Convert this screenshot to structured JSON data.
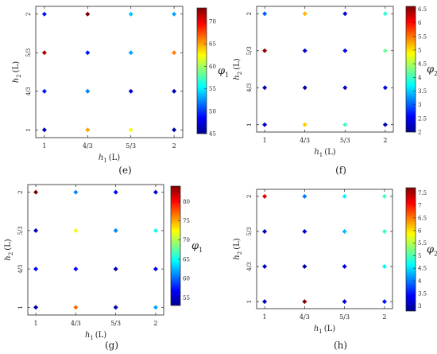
{
  "chart_data": [
    {
      "type": "scatter",
      "panel_label": "(e)",
      "xlabel_main": "h",
      "xlabel_sub": "1",
      "xlabel_unit": "(L)",
      "ylabel_main": "h",
      "ylabel_sub": "2",
      "ylabel_unit": "(L)",
      "x_ticks": [
        "1",
        "4/3",
        "5/3",
        "2"
      ],
      "y_ticks": [
        "1",
        "4/3",
        "5/3",
        "2"
      ],
      "colorbar_label_main": "φ",
      "colorbar_label_sub": "1",
      "colorbar_ticks": [
        "45",
        "50",
        "55",
        "60",
        "65",
        "70"
      ],
      "colorbar_range": [
        45,
        73
      ],
      "grid": false,
      "points": [
        {
          "x": "1",
          "y": "1",
          "value": 46
        },
        {
          "x": "4/3",
          "y": "1",
          "value": 65
        },
        {
          "x": "5/3",
          "y": "1",
          "value": 62
        },
        {
          "x": "2",
          "y": "1",
          "value": 46
        },
        {
          "x": "1",
          "y": "4/3",
          "value": 49
        },
        {
          "x": "4/3",
          "y": "4/3",
          "value": 52
        },
        {
          "x": "5/3",
          "y": "4/3",
          "value": 47
        },
        {
          "x": "2",
          "y": "4/3",
          "value": 46
        },
        {
          "x": "1",
          "y": "5/3",
          "value": 72
        },
        {
          "x": "4/3",
          "y": "5/3",
          "value": 49
        },
        {
          "x": "5/3",
          "y": "5/3",
          "value": 53
        },
        {
          "x": "2",
          "y": "5/3",
          "value": 66
        },
        {
          "x": "1",
          "y": "2",
          "value": 49
        },
        {
          "x": "4/3",
          "y": "2",
          "value": 73
        },
        {
          "x": "5/3",
          "y": "2",
          "value": 54
        },
        {
          "x": "2",
          "y": "2",
          "value": 53
        }
      ]
    },
    {
      "type": "scatter",
      "panel_label": "(f)",
      "xlabel_main": "h",
      "xlabel_sub": "1",
      "xlabel_unit": "(L)",
      "ylabel_main": "h",
      "ylabel_sub": "2",
      "ylabel_unit": "(L)",
      "x_ticks": [
        "1",
        "4/3",
        "5/3",
        "2"
      ],
      "y_ticks": [
        "1",
        "4/3",
        "5/3",
        "2"
      ],
      "colorbar_label_main": "φ",
      "colorbar_label_sub": "2",
      "colorbar_ticks": [
        "2",
        "2.5",
        "3",
        "3.5",
        "4",
        "4.5",
        "5",
        "5.5",
        "6",
        "6.5"
      ],
      "colorbar_range": [
        2,
        6.6
      ],
      "grid": false,
      "points": [
        {
          "x": "1",
          "y": "1",
          "value": 2.3
        },
        {
          "x": "4/3",
          "y": "1",
          "value": 5.1
        },
        {
          "x": "5/3",
          "y": "1",
          "value": 4.0
        },
        {
          "x": "2",
          "y": "1",
          "value": 2.2
        },
        {
          "x": "1",
          "y": "4/3",
          "value": 2.2
        },
        {
          "x": "4/3",
          "y": "4/3",
          "value": 2.1
        },
        {
          "x": "5/3",
          "y": "4/3",
          "value": 2.3
        },
        {
          "x": "2",
          "y": "4/3",
          "value": 2.4
        },
        {
          "x": "1",
          "y": "5/3",
          "value": 6.5
        },
        {
          "x": "4/3",
          "y": "5/3",
          "value": 2.3
        },
        {
          "x": "5/3",
          "y": "5/3",
          "value": 2.5
        },
        {
          "x": "2",
          "y": "5/3",
          "value": 4.2
        },
        {
          "x": "1",
          "y": "2",
          "value": 3.0
        },
        {
          "x": "4/3",
          "y": "2",
          "value": 5.2
        },
        {
          "x": "5/3",
          "y": "2",
          "value": 2.4
        },
        {
          "x": "2",
          "y": "2",
          "value": 3.9
        }
      ]
    },
    {
      "type": "scatter",
      "panel_label": "(g)",
      "xlabel_main": "h",
      "xlabel_sub": "1",
      "xlabel_unit": "(L)",
      "ylabel_main": "h",
      "ylabel_sub": "2",
      "ylabel_unit": "(L)",
      "x_ticks": [
        "1",
        "4/3",
        "5/3",
        "2"
      ],
      "y_ticks": [
        "1",
        "4/3",
        "5/3",
        "2"
      ],
      "colorbar_label_main": "φ",
      "colorbar_label_sub": "1",
      "colorbar_ticks": [
        "55",
        "60",
        "65",
        "70",
        "75",
        "80"
      ],
      "colorbar_range": [
        53,
        84
      ],
      "grid": false,
      "points": [
        {
          "x": "1",
          "y": "1",
          "value": 54
        },
        {
          "x": "4/3",
          "y": "1",
          "value": 77
        },
        {
          "x": "5/3",
          "y": "1",
          "value": 54
        },
        {
          "x": "2",
          "y": "1",
          "value": 62
        },
        {
          "x": "1",
          "y": "4/3",
          "value": 57
        },
        {
          "x": "4/3",
          "y": "4/3",
          "value": 57
        },
        {
          "x": "5/3",
          "y": "4/3",
          "value": 54
        },
        {
          "x": "2",
          "y": "4/3",
          "value": 56
        },
        {
          "x": "1",
          "y": "5/3",
          "value": 55
        },
        {
          "x": "4/3",
          "y": "5/3",
          "value": 72
        },
        {
          "x": "5/3",
          "y": "5/3",
          "value": 61
        },
        {
          "x": "2",
          "y": "5/3",
          "value": 65
        },
        {
          "x": "1",
          "y": "2",
          "value": 84
        },
        {
          "x": "4/3",
          "y": "2",
          "value": 61
        },
        {
          "x": "5/3",
          "y": "2",
          "value": 57
        },
        {
          "x": "2",
          "y": "2",
          "value": 55
        }
      ]
    },
    {
      "type": "scatter",
      "panel_label": "(h)",
      "xlabel_main": "h",
      "xlabel_sub": "1",
      "xlabel_unit": "(L)",
      "ylabel_main": "h",
      "ylabel_sub": "2",
      "ylabel_unit": "(L)",
      "x_ticks": [
        "1",
        "4/3",
        "5/3",
        "2"
      ],
      "y_ticks": [
        "1",
        "4/3",
        "5/3",
        "2"
      ],
      "colorbar_label_main": "φ",
      "colorbar_label_sub": "2",
      "colorbar_ticks": [
        "3",
        "3.5",
        "4",
        "4.5",
        "5",
        "5.5",
        "6",
        "6.5",
        "7",
        "7.5"
      ],
      "colorbar_range": [
        2.8,
        7.7
      ],
      "grid": false,
      "points": [
        {
          "x": "1",
          "y": "1",
          "value": 3.0
        },
        {
          "x": "4/3",
          "y": "1",
          "value": 7.7
        },
        {
          "x": "5/3",
          "y": "1",
          "value": 3.1
        },
        {
          "x": "2",
          "y": "1",
          "value": 3.5
        },
        {
          "x": "1",
          "y": "4/3",
          "value": 3.1
        },
        {
          "x": "4/3",
          "y": "4/3",
          "value": 2.9
        },
        {
          "x": "5/3",
          "y": "4/3",
          "value": 3.3
        },
        {
          "x": "2",
          "y": "4/3",
          "value": 4.6
        },
        {
          "x": "1",
          "y": "5/3",
          "value": 3.1
        },
        {
          "x": "4/3",
          "y": "5/3",
          "value": 3.2
        },
        {
          "x": "5/3",
          "y": "5/3",
          "value": 4.3
        },
        {
          "x": "2",
          "y": "5/3",
          "value": 4.9
        },
        {
          "x": "1",
          "y": "2",
          "value": 7.3
        },
        {
          "x": "4/3",
          "y": "2",
          "value": 4.0
        },
        {
          "x": "5/3",
          "y": "2",
          "value": 4.6
        },
        {
          "x": "2",
          "y": "2",
          "value": 5.0
        }
      ]
    }
  ]
}
